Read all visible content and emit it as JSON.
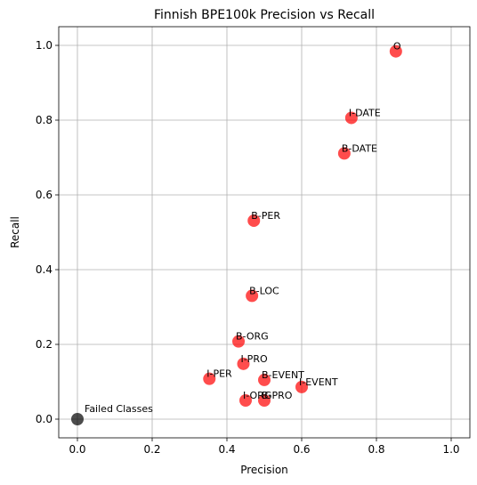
{
  "chart_data": {
    "type": "scatter",
    "title": "Finnish BPE100k Precision vs Recall",
    "xlabel": "Precision",
    "ylabel": "Recall",
    "xlim": [
      -0.05,
      1.05
    ],
    "ylim": [
      -0.05,
      1.05
    ],
    "xticks": [
      0.0,
      0.2,
      0.4,
      0.6,
      0.8,
      1.0
    ],
    "yticks": [
      0.0,
      0.2,
      0.4,
      0.6,
      0.8,
      1.0
    ],
    "xtick_labels": [
      "0.0",
      "0.2",
      "0.4",
      "0.6",
      "0.8",
      "1.0"
    ],
    "ytick_labels": [
      "0.0",
      "0.2",
      "0.4",
      "0.6",
      "0.8",
      "1.0"
    ],
    "grid": true,
    "colors": {
      "point": "#ff0000",
      "failed": "#000000"
    },
    "points": [
      {
        "label": "O",
        "x": 0.852,
        "y": 0.984
      },
      {
        "label": "I-DATE",
        "x": 0.733,
        "y": 0.806
      },
      {
        "label": "B-DATE",
        "x": 0.714,
        "y": 0.711
      },
      {
        "label": "B-PER",
        "x": 0.472,
        "y": 0.531
      },
      {
        "label": "B-LOC",
        "x": 0.467,
        "y": 0.33
      },
      {
        "label": "B-ORG",
        "x": 0.431,
        "y": 0.208
      },
      {
        "label": "I-PRO",
        "x": 0.444,
        "y": 0.148
      },
      {
        "label": "B-EVENT",
        "x": 0.5,
        "y": 0.105
      },
      {
        "label": "I-PER",
        "x": 0.353,
        "y": 0.108
      },
      {
        "label": "I-EVENT",
        "x": 0.6,
        "y": 0.086
      },
      {
        "label": "I-ORG",
        "x": 0.45,
        "y": 0.05
      },
      {
        "label": "B-PRO",
        "x": 0.5,
        "y": 0.05
      }
    ],
    "failed": {
      "label": "Failed Classes",
      "x": 0.0,
      "y": 0.0
    }
  }
}
